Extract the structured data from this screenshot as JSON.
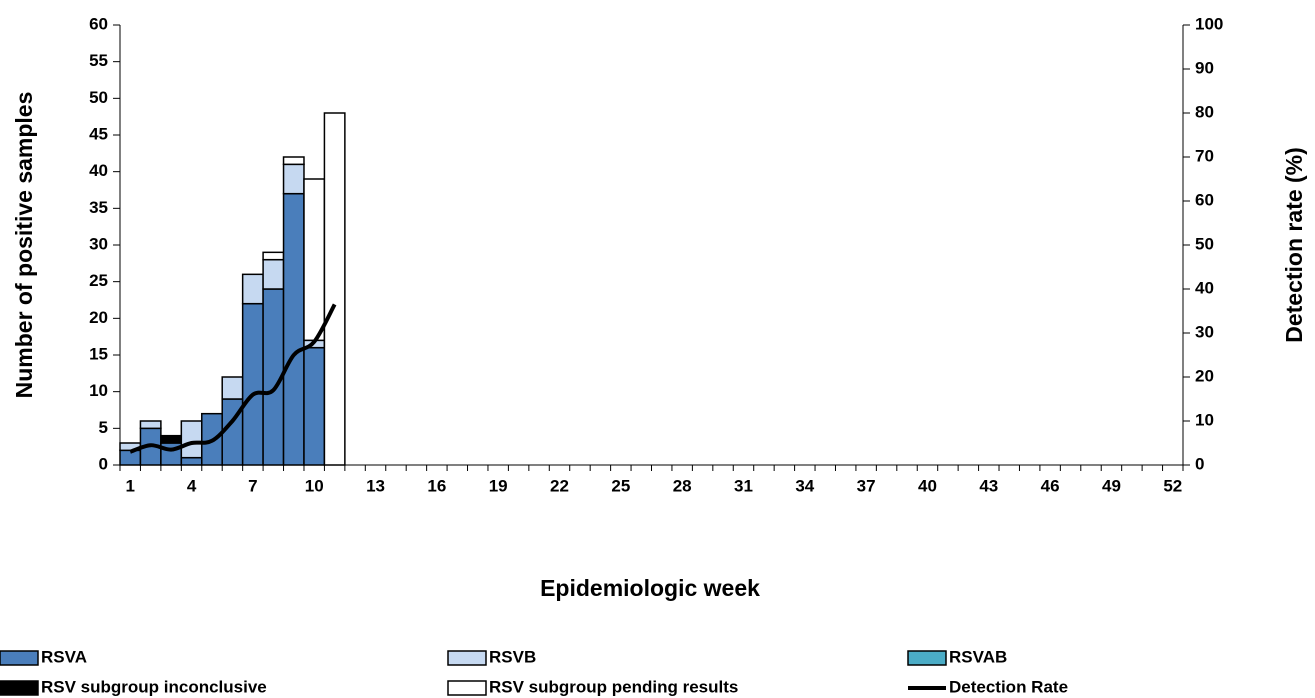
{
  "chart_data": {
    "type": "bar",
    "stacked": true,
    "x_label": "Epidemiologic week",
    "y_label": "Number of positive samples",
    "y2_label": "Detection rate (%)",
    "categories": [
      "1",
      null,
      null,
      "4",
      null,
      null,
      "7",
      null,
      null,
      "10",
      null,
      null,
      "13",
      null,
      null,
      "16",
      null,
      null,
      "19",
      null,
      null,
      "22",
      null,
      null,
      "25",
      null,
      null,
      "28",
      null,
      null,
      "31",
      null,
      null,
      "34",
      null,
      null,
      "37",
      null,
      null,
      "40",
      null,
      null,
      "43",
      null,
      null,
      "46",
      null,
      null,
      "49",
      null,
      null,
      "52"
    ],
    "ylim": [
      0,
      60
    ],
    "yticks": [
      0,
      5,
      10,
      15,
      20,
      25,
      30,
      35,
      40,
      45,
      50,
      55,
      60
    ],
    "y2lim": [
      0,
      100
    ],
    "y2ticks": [
      0,
      10,
      20,
      30,
      40,
      50,
      60,
      70,
      80,
      90,
      100
    ],
    "series": [
      {
        "name": "RSVA",
        "color": "#4a7ebb",
        "values": [
          2,
          5,
          3,
          1,
          7,
          9,
          22,
          24,
          37,
          16,
          0,
          0,
          0,
          0,
          0,
          0,
          0,
          0,
          0,
          0,
          0,
          0,
          0,
          0,
          0,
          0,
          0,
          0,
          0,
          0,
          0,
          0,
          0,
          0,
          0,
          0,
          0,
          0,
          0,
          0,
          0,
          0,
          0,
          0,
          0,
          0,
          0,
          0,
          0,
          0,
          0,
          0
        ]
      },
      {
        "name": "RSVB",
        "color": "#c6d9f1",
        "values": [
          1,
          1,
          0,
          5,
          0,
          3,
          4,
          4,
          4,
          1,
          0,
          0,
          0,
          0,
          0,
          0,
          0,
          0,
          0,
          0,
          0,
          0,
          0,
          0,
          0,
          0,
          0,
          0,
          0,
          0,
          0,
          0,
          0,
          0,
          0,
          0,
          0,
          0,
          0,
          0,
          0,
          0,
          0,
          0,
          0,
          0,
          0,
          0,
          0,
          0,
          0,
          0
        ]
      },
      {
        "name": "RSVAB",
        "color": "#4bacc6",
        "values": [
          0,
          0,
          0,
          0,
          0,
          0,
          0,
          0,
          0,
          0,
          0,
          0,
          0,
          0,
          0,
          0,
          0,
          0,
          0,
          0,
          0,
          0,
          0,
          0,
          0,
          0,
          0,
          0,
          0,
          0,
          0,
          0,
          0,
          0,
          0,
          0,
          0,
          0,
          0,
          0,
          0,
          0,
          0,
          0,
          0,
          0,
          0,
          0,
          0,
          0,
          0,
          0
        ]
      },
      {
        "name": "RSV subgroup inconclusive",
        "color": "#000000",
        "values": [
          0,
          0,
          1,
          0,
          0,
          0,
          0,
          0,
          0,
          0,
          0,
          0,
          0,
          0,
          0,
          0,
          0,
          0,
          0,
          0,
          0,
          0,
          0,
          0,
          0,
          0,
          0,
          0,
          0,
          0,
          0,
          0,
          0,
          0,
          0,
          0,
          0,
          0,
          0,
          0,
          0,
          0,
          0,
          0,
          0,
          0,
          0,
          0,
          0,
          0,
          0,
          0
        ]
      },
      {
        "name": "RSV subgroup pending results",
        "color": "#ffffff",
        "values": [
          0,
          0,
          0,
          0,
          0,
          0,
          0,
          1,
          1,
          22,
          48,
          0,
          0,
          0,
          0,
          0,
          0,
          0,
          0,
          0,
          0,
          0,
          0,
          0,
          0,
          0,
          0,
          0,
          0,
          0,
          0,
          0,
          0,
          0,
          0,
          0,
          0,
          0,
          0,
          0,
          0,
          0,
          0,
          0,
          0,
          0,
          0,
          0,
          0,
          0,
          0,
          0
        ]
      },
      {
        "name": "Detection Rate",
        "color": "#000000",
        "axis": "y2",
        "values": [
          3,
          4.5,
          3.5,
          5,
          5.5,
          10,
          16,
          17,
          25,
          28,
          36.5,
          null,
          null,
          null,
          null,
          null,
          null,
          null,
          null,
          null,
          null,
          null,
          null,
          null,
          null,
          null,
          null,
          null,
          null,
          null,
          null,
          null,
          null,
          null,
          null,
          null,
          null,
          null,
          null,
          null,
          null,
          null,
          null,
          null,
          null,
          null,
          null,
          null,
          null,
          null,
          null,
          null
        ]
      }
    ]
  }
}
